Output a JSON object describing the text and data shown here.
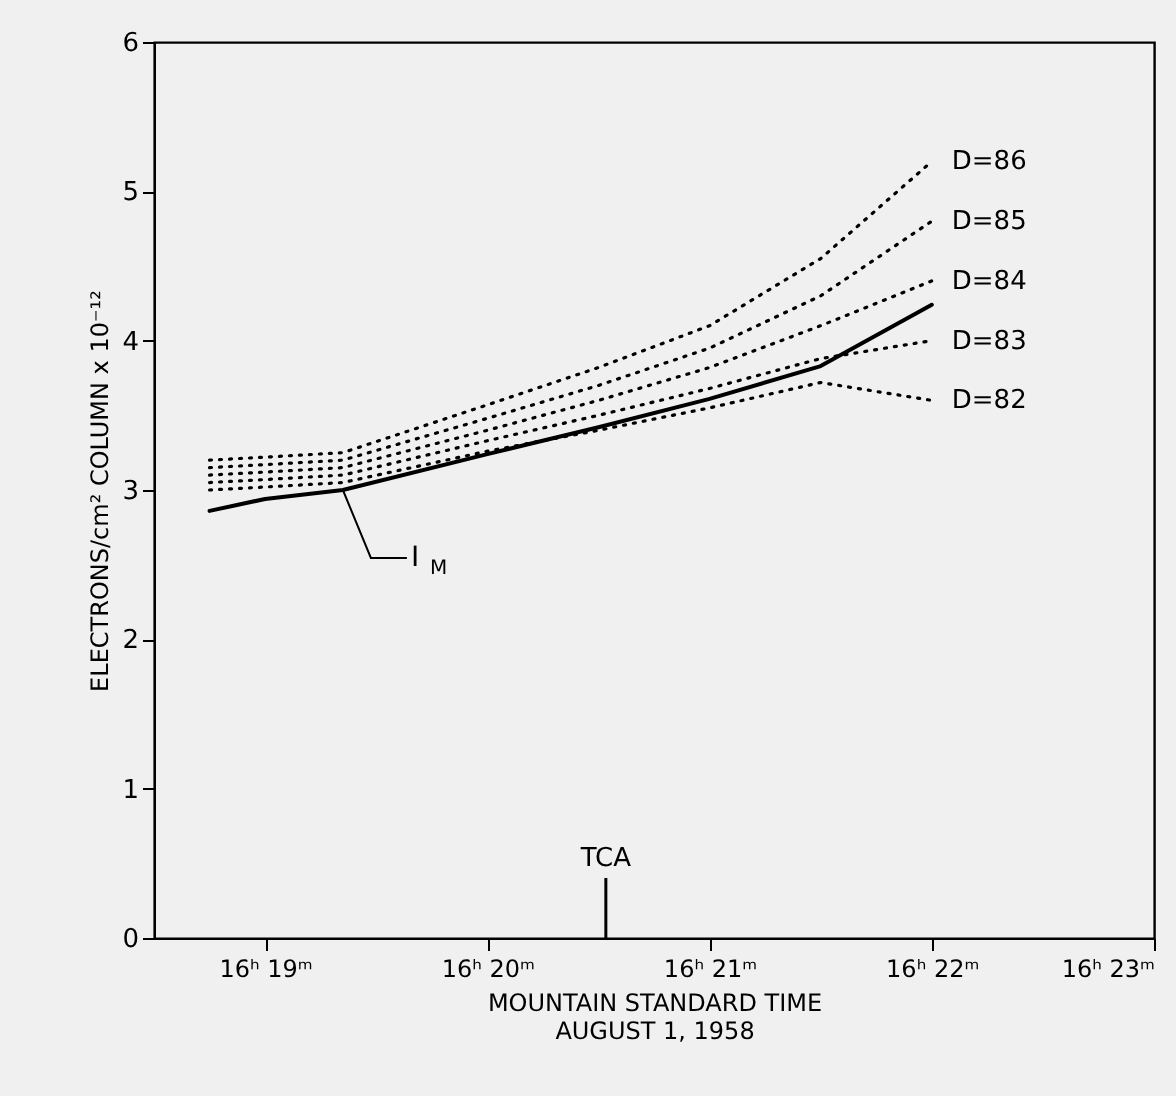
{
  "chart_data": {
    "type": "line",
    "xlabel": "MOUNTAIN STANDARD TIME\nAUGUST 1, 1958",
    "ylabel": "ELECTRONS/cm² COLUMN x 10⁻¹²",
    "xlim": [
      "1958-08-01T16:18:30",
      "1958-08-01T16:23"
    ],
    "xticks": [
      {
        "value": "1958-08-01T16:19",
        "label": "16ʰ 19ᵐ"
      },
      {
        "value": "1958-08-01T16:20",
        "label": "16ʰ 20ᵐ"
      },
      {
        "value": "1958-08-01T16:21",
        "label": "16ʰ 21ᵐ"
      },
      {
        "value": "1958-08-01T16:22",
        "label": "16ʰ 22ᵐ"
      },
      {
        "value": "1958-08-01T16:23",
        "label": "16ʰ 23ᵐ"
      }
    ],
    "ylim": [
      0,
      6
    ],
    "yticks": [
      0,
      1,
      2,
      3,
      4,
      5,
      6
    ],
    "grid": false,
    "marker": "none",
    "x": [
      "1958-08-01T16:18:45",
      "1958-08-01T16:19",
      "1958-08-01T16:19:21",
      "1958-08-01T16:20",
      "1958-08-01T16:20:30",
      "1958-08-01T16:21",
      "1958-08-01T16:21:30",
      "1958-08-01T16:22"
    ],
    "series": [
      {
        "color": "#000000",
        "line_style": "solid",
        "values": [
          2.86,
          2.94,
          3.0,
          3.24,
          3.42,
          3.61,
          3.83,
          4.24
        ]
      },
      {
        "name": "D=82",
        "color": "#000000",
        "line_style": "dotted",
        "values": [
          3.0,
          3.02,
          3.05,
          3.26,
          3.4,
          3.55,
          3.72,
          3.6
        ]
      },
      {
        "name": "D=83",
        "color": "#000000",
        "line_style": "dotted",
        "values": [
          3.05,
          3.07,
          3.1,
          3.33,
          3.5,
          3.68,
          3.88,
          4.0
        ]
      },
      {
        "name": "D=84",
        "color": "#000000",
        "line_style": "dotted",
        "values": [
          3.1,
          3.12,
          3.15,
          3.4,
          3.6,
          3.82,
          4.1,
          4.4
        ]
      },
      {
        "name": "D=85",
        "color": "#000000",
        "line_style": "dotted",
        "values": [
          3.15,
          3.17,
          3.2,
          3.48,
          3.7,
          3.95,
          4.3,
          4.8
        ]
      },
      {
        "name": "D=86",
        "color": "#000000",
        "line_style": "dotted",
        "values": [
          3.2,
          3.22,
          3.25,
          3.57,
          3.82,
          4.1,
          4.55,
          5.2
        ]
      }
    ],
    "ref_lines": [
      {
        "axis": "x",
        "value": "1958-08-01T16:20:32",
        "label": "TCA"
      }
    ],
    "annotations": [
      {
        "text": "I$_{M}$",
        "x": "1958-08-01T16:19:21",
        "y": 3.0
      }
    ]
  }
}
